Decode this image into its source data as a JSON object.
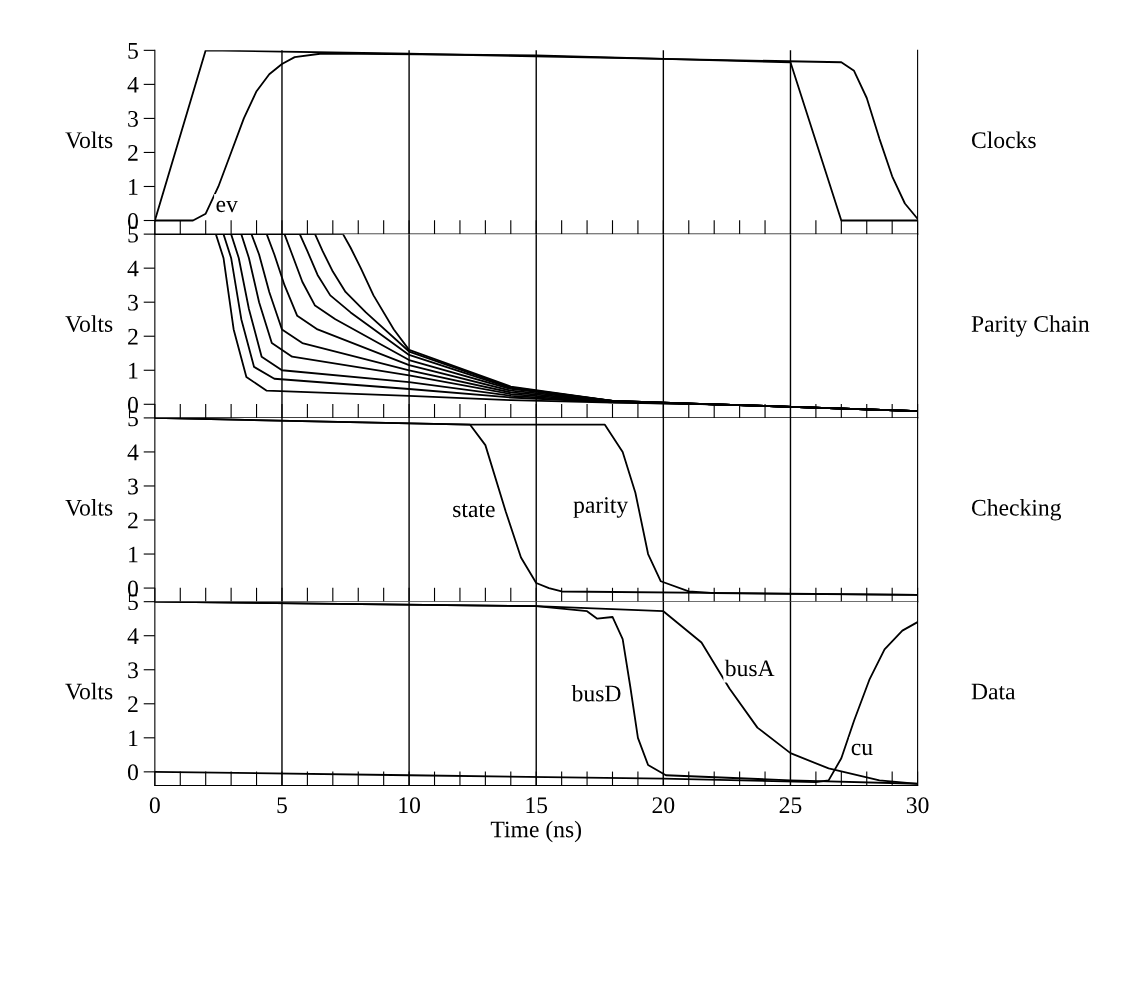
{
  "chart_data": [
    {
      "type": "line",
      "ylabel": "Volts",
      "xlim": [
        0,
        30
      ],
      "ylim": [
        -0.4,
        5
      ],
      "yticks": [
        0,
        1,
        2,
        3,
        4,
        5
      ],
      "tick_labels": "y",
      "grid": "x",
      "xticks": [
        0,
        {
          "value": 1,
          "label": null
        },
        {
          "value": 2,
          "label": null
        },
        {
          "value": 3,
          "label": null
        },
        {
          "value": 4,
          "label": null
        },
        5,
        {
          "value": 6,
          "label": null
        },
        {
          "value": 7,
          "label": null
        },
        {
          "value": 8,
          "label": null
        },
        {
          "value": 9,
          "label": null
        },
        10,
        {
          "value": 11,
          "label": null
        },
        {
          "value": 12,
          "label": null
        },
        {
          "value": 13,
          "label": null
        },
        {
          "value": 14,
          "label": null
        },
        15,
        {
          "value": 16,
          "label": null
        },
        {
          "value": 17,
          "label": null
        },
        {
          "value": 18,
          "label": null
        },
        {
          "value": 19,
          "label": null
        },
        20,
        {
          "value": 21,
          "label": null
        },
        {
          "value": 22,
          "label": null
        },
        {
          "value": 23,
          "label": null
        },
        {
          "value": 24,
          "label": null
        },
        25,
        {
          "value": 26,
          "label": null
        },
        {
          "value": 27,
          "label": null
        },
        {
          "value": 28,
          "label": null
        },
        {
          "value": 29,
          "label": null
        },
        30
      ],
      "annotations": [
        "Clocks"
      ],
      "series": [
        {
          "color": "#000000",
          "x": [
            0,
            2,
            10,
            20,
            25,
            27,
            30
          ],
          "values": [
            0,
            5,
            4.9,
            4.75,
            4.65,
            0,
            0
          ]
        },
        {
          "name": "ev",
          "color": "#000000",
          "x": [
            0,
            1.5,
            2,
            2.5,
            3,
            3.5,
            4,
            4.5,
            5,
            5.5,
            6.5,
            8,
            15,
            20,
            27,
            27.5,
            28,
            28.5,
            29,
            29.5,
            30
          ],
          "values": [
            0,
            0,
            0.2,
            1,
            2,
            3,
            3.8,
            4.3,
            4.6,
            4.8,
            4.9,
            4.9,
            4.85,
            4.75,
            4.65,
            4.4,
            3.6,
            2.4,
            1.3,
            0.5,
            0.05
          ]
        }
      ]
    },
    {
      "type": "line",
      "ylabel": "Volts",
      "xlim": [
        0,
        30
      ],
      "ylim": [
        -0.4,
        5
      ],
      "yticks": [
        0,
        1,
        2,
        3,
        4,
        5
      ],
      "tick_labels": "y",
      "grid": "x",
      "xticks": [
        0,
        {
          "value": 1,
          "label": null
        },
        {
          "value": 2,
          "label": null
        },
        {
          "value": 3,
          "label": null
        },
        {
          "value": 4,
          "label": null
        },
        5,
        {
          "value": 6,
          "label": null
        },
        {
          "value": 7,
          "label": null
        },
        {
          "value": 8,
          "label": null
        },
        {
          "value": 9,
          "label": null
        },
        10,
        {
          "value": 11,
          "label": null
        },
        {
          "value": 12,
          "label": null
        },
        {
          "value": 13,
          "label": null
        },
        {
          "value": 14,
          "label": null
        },
        15,
        {
          "value": 16,
          "label": null
        },
        {
          "value": 17,
          "label": null
        },
        {
          "value": 18,
          "label": null
        },
        {
          "value": 19,
          "label": null
        },
        20,
        {
          "value": 21,
          "label": null
        },
        {
          "value": 22,
          "label": null
        },
        {
          "value": 23,
          "label": null
        },
        {
          "value": 24,
          "label": null
        },
        25,
        {
          "value": 26,
          "label": null
        },
        {
          "value": 27,
          "label": null
        },
        {
          "value": 28,
          "label": null
        },
        {
          "value": 29,
          "label": null
        },
        30
      ],
      "annotations": [
        "Parity Chain"
      ],
      "series": [
        {
          "color": "#000000",
          "x": [
            0,
            2.4,
            2.7,
            3.1,
            3.6,
            4.4,
            10,
            14,
            18,
            22,
            30
          ],
          "values": [
            5,
            5,
            4.3,
            2.2,
            0.8,
            0.4,
            0.25,
            0.12,
            0.05,
            0,
            -0.2
          ]
        },
        {
          "color": "#000000",
          "x": [
            0,
            2.7,
            3.0,
            3.4,
            3.9,
            4.7,
            10,
            14,
            18,
            22,
            30
          ],
          "values": [
            5,
            5,
            4.3,
            2.5,
            1.1,
            0.75,
            0.45,
            0.2,
            0.06,
            0,
            -0.2
          ]
        },
        {
          "color": "#000000",
          "x": [
            0,
            3.0,
            3.3,
            3.7,
            4.2,
            5.0,
            10,
            14,
            18,
            22,
            30
          ],
          "values": [
            5,
            5,
            4.3,
            2.8,
            1.4,
            1.0,
            0.65,
            0.25,
            0.07,
            0,
            -0.2
          ]
        },
        {
          "color": "#000000",
          "x": [
            0,
            3.4,
            3.7,
            4.1,
            4.6,
            5.4,
            10,
            14,
            18,
            22,
            30
          ],
          "values": [
            5,
            5,
            4.3,
            3.0,
            1.8,
            1.4,
            0.85,
            0.3,
            0.08,
            0,
            -0.2
          ]
        },
        {
          "color": "#000000",
          "x": [
            0,
            3.8,
            4.1,
            4.5,
            5.0,
            5.8,
            10,
            14,
            18,
            22,
            30
          ],
          "values": [
            5,
            5,
            4.4,
            3.3,
            2.2,
            1.8,
            1.0,
            0.35,
            0.09,
            0,
            -0.2
          ]
        },
        {
          "color": "#000000",
          "x": [
            0,
            4.4,
            4.7,
            5.1,
            5.6,
            6.4,
            10,
            14,
            18,
            22,
            30
          ],
          "values": [
            5,
            5,
            4.4,
            3.5,
            2.6,
            2.2,
            1.15,
            0.4,
            0.1,
            0,
            -0.2
          ]
        },
        {
          "color": "#000000",
          "x": [
            0,
            5.1,
            5.4,
            5.8,
            6.3,
            7.1,
            10,
            14,
            18,
            22,
            30
          ],
          "values": [
            5,
            5,
            4.4,
            3.6,
            2.9,
            2.5,
            1.3,
            0.45,
            0.1,
            0,
            -0.2
          ]
        },
        {
          "color": "#000000",
          "x": [
            0,
            5.7,
            6.0,
            6.4,
            6.9,
            7.7,
            10,
            14,
            18,
            22,
            30
          ],
          "values": [
            5,
            5,
            4.5,
            3.8,
            3.2,
            2.7,
            1.45,
            0.48,
            0.1,
            0,
            -0.2
          ]
        },
        {
          "color": "#000000",
          "x": [
            0,
            6.3,
            6.6,
            7.0,
            7.5,
            8.3,
            10,
            14,
            18,
            22,
            30
          ],
          "values": [
            5,
            5,
            4.5,
            3.9,
            3.3,
            2.7,
            1.55,
            0.5,
            0.1,
            0,
            -0.2
          ]
        },
        {
          "color": "#000000",
          "x": [
            0,
            7.4,
            7.7,
            8.1,
            8.6,
            9.4,
            10,
            14,
            18,
            22,
            30
          ],
          "values": [
            5,
            5,
            4.6,
            4.0,
            3.2,
            2.2,
            1.6,
            0.52,
            0.1,
            0,
            -0.2
          ]
        }
      ]
    },
    {
      "type": "line",
      "ylabel": "Volts",
      "xlim": [
        0,
        30
      ],
      "ylim": [
        -0.4,
        5
      ],
      "yticks": [
        0,
        1,
        2,
        3,
        4,
        5
      ],
      "tick_labels": "y",
      "grid": "x",
      "xticks": [
        0,
        {
          "value": 1,
          "label": null
        },
        {
          "value": 2,
          "label": null
        },
        {
          "value": 3,
          "label": null
        },
        {
          "value": 4,
          "label": null
        },
        5,
        {
          "value": 6,
          "label": null
        },
        {
          "value": 7,
          "label": null
        },
        {
          "value": 8,
          "label": null
        },
        {
          "value": 9,
          "label": null
        },
        10,
        {
          "value": 11,
          "label": null
        },
        {
          "value": 12,
          "label": null
        },
        {
          "value": 13,
          "label": null
        },
        {
          "value": 14,
          "label": null
        },
        15,
        {
          "value": 16,
          "label": null
        },
        {
          "value": 17,
          "label": null
        },
        {
          "value": 18,
          "label": null
        },
        {
          "value": 19,
          "label": null
        },
        20,
        {
          "value": 21,
          "label": null
        },
        {
          "value": 22,
          "label": null
        },
        {
          "value": 23,
          "label": null
        },
        {
          "value": 24,
          "label": null
        },
        25,
        {
          "value": 26,
          "label": null
        },
        {
          "value": 27,
          "label": null
        },
        {
          "value": 28,
          "label": null
        },
        {
          "value": 29,
          "label": null
        },
        30
      ],
      "annotations": [
        "Checking"
      ],
      "series": [
        {
          "name": "state",
          "color": "#000000",
          "x": [
            0,
            12.4,
            13.0,
            13.8,
            14.4,
            15.0,
            15.5,
            16,
            30
          ],
          "values": [
            5,
            4.8,
            4.2,
            2.25,
            0.9,
            0.15,
            0,
            -0.1,
            -0.2
          ]
        },
        {
          "name": "parity",
          "color": "#000000",
          "x": [
            0,
            12.4,
            17.7,
            18.4,
            18.9,
            19.4,
            19.9,
            21,
            22,
            30
          ],
          "values": [
            5,
            4.8,
            4.8,
            4.0,
            2.8,
            1.0,
            0.2,
            -0.1,
            -0.15,
            -0.2
          ]
        }
      ]
    },
    {
      "type": "line",
      "ylabel": "Volts",
      "xlabel": "Time (ns)",
      "xlim": [
        0,
        30
      ],
      "ylim": [
        -0.4,
        5
      ],
      "yticks": [
        0,
        1,
        2,
        3,
        4,
        5
      ],
      "grid": "x",
      "xticks": [
        0,
        {
          "value": 1,
          "label": null
        },
        {
          "value": 2,
          "label": null
        },
        {
          "value": 3,
          "label": null
        },
        {
          "value": 4,
          "label": null
        },
        5,
        {
          "value": 6,
          "label": null
        },
        {
          "value": 7,
          "label": null
        },
        {
          "value": 8,
          "label": null
        },
        {
          "value": 9,
          "label": null
        },
        10,
        {
          "value": 11,
          "label": null
        },
        {
          "value": 12,
          "label": null
        },
        {
          "value": 13,
          "label": null
        },
        {
          "value": 14,
          "label": null
        },
        15,
        {
          "value": 16,
          "label": null
        },
        {
          "value": 17,
          "label": null
        },
        {
          "value": 18,
          "label": null
        },
        {
          "value": 19,
          "label": null
        },
        20,
        {
          "value": 21,
          "label": null
        },
        {
          "value": 22,
          "label": null
        },
        {
          "value": 23,
          "label": null
        },
        {
          "value": 24,
          "label": null
        },
        25,
        {
          "value": 26,
          "label": null
        },
        {
          "value": 27,
          "label": null
        },
        {
          "value": 28,
          "label": null
        },
        {
          "value": 29,
          "label": null
        },
        30
      ],
      "annotations": [
        "Data"
      ],
      "series": [
        {
          "name": "busD",
          "color": "#000000",
          "x": [
            0,
            15,
            17.0,
            17.4,
            18.0,
            18.4,
            18.7,
            19.0,
            19.4,
            20.1,
            25,
            30
          ],
          "values": [
            5,
            4.87,
            4.72,
            4.5,
            4.55,
            3.9,
            2.5,
            1.0,
            0.2,
            -0.1,
            -0.25,
            -0.35
          ]
        },
        {
          "name": "busA",
          "color": "#000000",
          "x": [
            0,
            15,
            20,
            21.5,
            22.6,
            23.7,
            25,
            26.5,
            28.5,
            30
          ],
          "values": [
            5,
            4.87,
            4.72,
            3.8,
            2.45,
            1.3,
            0.55,
            0.1,
            -0.25,
            -0.35
          ]
        },
        {
          "name": "cu",
          "color": "#000000",
          "x": [
            0,
            10,
            20,
            26,
            26.5,
            27,
            27.5,
            28.1,
            28.7,
            29.4,
            30
          ],
          "values": [
            0,
            -0.1,
            -0.2,
            -0.3,
            -0.25,
            0.4,
            1.5,
            2.7,
            3.6,
            4.15,
            4.4
          ]
        }
      ]
    }
  ]
}
